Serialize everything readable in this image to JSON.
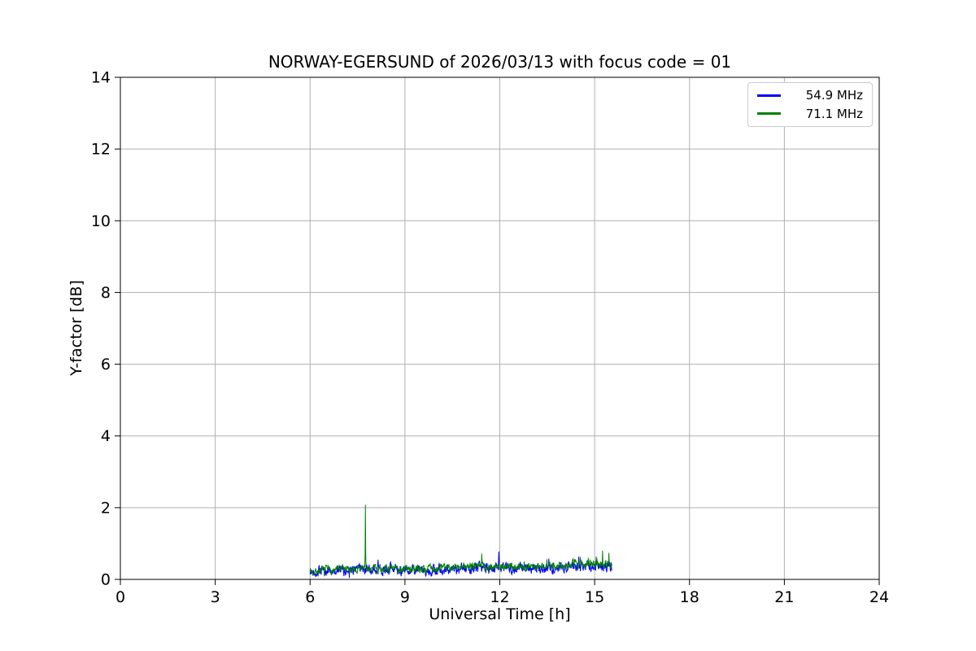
{
  "figure": {
    "background": "#ffffff"
  },
  "chart_data": {
    "type": "line",
    "title": "NORWAY-EGERSUND of 2026/03/13 with focus code = 01",
    "xlabel": "Universal Time [h]",
    "ylabel": "Y-factor [dB]",
    "xlim": [
      0,
      24
    ],
    "ylim": [
      0,
      14
    ],
    "xticks": [
      0,
      3,
      6,
      9,
      12,
      15,
      18,
      21,
      24
    ],
    "yticks": [
      0,
      2,
      4,
      6,
      8,
      10,
      12,
      14
    ],
    "grid": true,
    "grid_color": "#b0b0b0",
    "spine_color": "#000000",
    "legend": {
      "position": "upper right",
      "entries": [
        "54.9 MHz",
        "71.1 MHz"
      ]
    },
    "series": [
      {
        "name": "54.9 MHz",
        "color": "#0000ff",
        "x_start": 6.0,
        "x_end": 15.55,
        "step": 0.01,
        "baseline_start": 0.23,
        "baseline_end": 0.36,
        "noise_amplitude": 0.12,
        "wiggle_amplitude": 0.02,
        "seed": 42,
        "spikes": [
          {
            "x": 8.15,
            "y": 0.55,
            "width": 0.04
          },
          {
            "x": 11.97,
            "y": 0.78,
            "width": 0.03
          },
          {
            "x": 13.55,
            "y": 0.58,
            "width": 0.03
          }
        ]
      },
      {
        "name": "71.1 MHz",
        "color": "#008000",
        "x_start": 6.0,
        "x_end": 15.55,
        "step": 0.01,
        "baseline_start": 0.25,
        "baseline_end": 0.42,
        "noise_amplitude": 0.09,
        "wiggle_amplitude": 0.02,
        "seed": 7,
        "spikes": [
          {
            "x": 7.75,
            "y": 2.08,
            "width": 0.015
          },
          {
            "x": 11.43,
            "y": 0.72,
            "width": 0.03
          },
          {
            "x": 14.55,
            "y": 0.62,
            "width": 0.03
          },
          {
            "x": 14.8,
            "y": 0.6,
            "width": 0.025
          },
          {
            "x": 15.05,
            "y": 0.64,
            "width": 0.025
          },
          {
            "x": 15.25,
            "y": 0.8,
            "width": 0.025
          },
          {
            "x": 15.45,
            "y": 0.74,
            "width": 0.025
          }
        ]
      }
    ]
  }
}
